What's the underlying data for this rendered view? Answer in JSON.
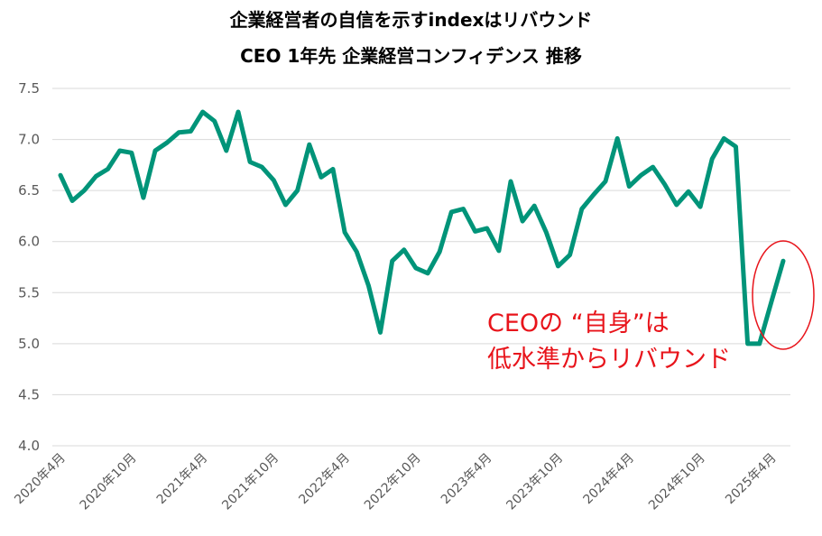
{
  "chart_data": {
    "type": "line",
    "title": "企業経営者の自信を示すindexはリバウンド",
    "subtitle": "CEO 1年先 企業経営コンフィデンス 推移",
    "ylim": [
      4.0,
      7.5
    ],
    "yticks": [
      "7.5",
      "7.0",
      "6.5",
      "6.0",
      "5.5",
      "5.0",
      "4.5",
      "4.0"
    ],
    "ytick_values": [
      7.5,
      7.0,
      6.5,
      6.0,
      5.5,
      5.0,
      4.5,
      4.0
    ],
    "xtick_labels": [
      "2020年4月",
      "2020年10月",
      "2021年4月",
      "2021年10月",
      "2022年4月",
      "2022年10月",
      "2023年4月",
      "2023年10月",
      "2024年4月",
      "2024年10月",
      "2025年4月"
    ],
    "grid": true,
    "line_color": "#009479",
    "annotation_lines": [
      "CEOの “自身”は",
      "低水準からリバウンド"
    ],
    "annotation_color": "#e8141b",
    "values": [
      6.65,
      6.4,
      6.5,
      6.64,
      6.71,
      6.89,
      6.87,
      6.43,
      6.89,
      6.97,
      7.07,
      7.08,
      7.27,
      7.18,
      6.89,
      7.27,
      6.78,
      6.73,
      6.6,
      6.36,
      6.5,
      6.95,
      6.63,
      6.71,
      6.09,
      5.9,
      5.57,
      5.11,
      5.81,
      5.92,
      5.74,
      5.69,
      5.9,
      6.29,
      6.32,
      6.1,
      6.13,
      5.91,
      6.59,
      6.2,
      6.35,
      6.09,
      5.76,
      5.87,
      6.32,
      6.46,
      6.59,
      7.01,
      6.54,
      6.65,
      6.73,
      6.56,
      6.36,
      6.49,
      6.34,
      6.81,
      7.01,
      6.93,
      5.0,
      5.0,
      5.41,
      5.81
    ]
  }
}
